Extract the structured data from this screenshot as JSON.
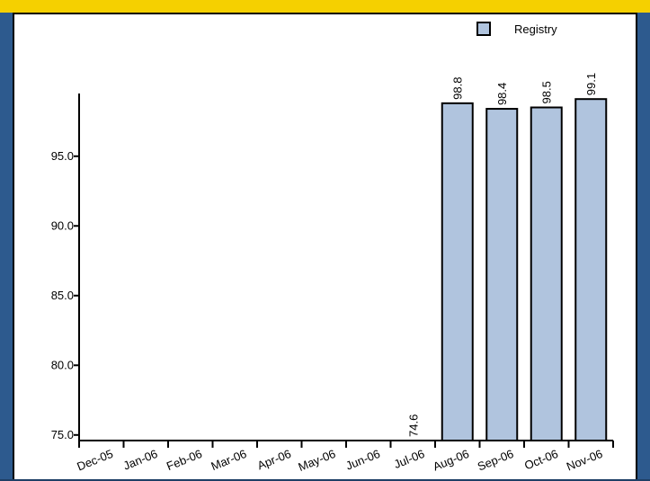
{
  "chart_data": {
    "type": "bar",
    "categories": [
      "Dec-05",
      "Jan-06",
      "Feb-06",
      "Mar-06",
      "Apr-06",
      "May-06",
      "Jun-06",
      "Jul-06",
      "Aug-06",
      "Sep-06",
      "Oct-06",
      "Nov-06"
    ],
    "series": [
      {
        "name": "Registry",
        "values": [
          null,
          null,
          null,
          null,
          null,
          null,
          null,
          74.6,
          98.8,
          98.4,
          98.5,
          99.1
        ],
        "labels": [
          "",
          "",
          "",
          "",
          "",
          "",
          "",
          "74.6",
          "98.8",
          "98.4",
          "98.5",
          "99.1"
        ]
      }
    ],
    "yticks": [
      "75.0",
      "80.0",
      "85.0",
      "90.0",
      "95.0"
    ],
    "ylim": [
      74.6,
      99.5
    ],
    "legend": "top-right",
    "colors": {
      "bar": "#b0c4de",
      "stroke": "#000000"
    }
  }
}
